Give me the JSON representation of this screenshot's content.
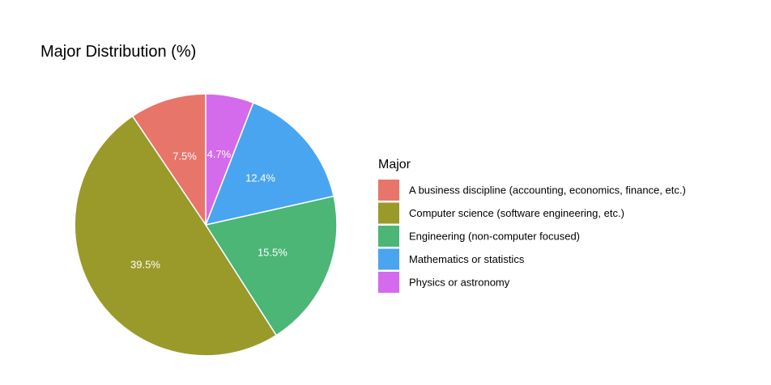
{
  "chart_data": {
    "type": "pie",
    "title": "Major Distribution (%)",
    "legend_title": "Major",
    "legend_position": "right",
    "start_angle_deg": 0,
    "direction": "counterclockwise",
    "slices": [
      {
        "label": "A business discipline (accounting, economics, finance, etc.)",
        "value": 7.5,
        "display": "7.5%",
        "color": "#E8756A"
      },
      {
        "label": "Computer science (software engineering, etc.)",
        "value": 39.5,
        "display": "39.5%",
        "color": "#9A9A2B"
      },
      {
        "label": "Engineering (non-computer focused)",
        "value": 15.5,
        "display": "15.5%",
        "color": "#4BB676"
      },
      {
        "label": "Mathematics or statistics",
        "value": 12.4,
        "display": "12.4%",
        "color": "#4AA5F0"
      },
      {
        "label": "Physics or astronomy",
        "value": 4.7,
        "display": "4.7%",
        "color": "#D46BEC"
      }
    ]
  }
}
